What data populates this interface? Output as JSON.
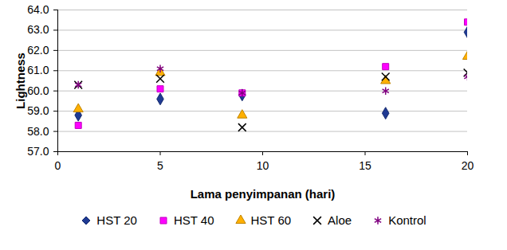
{
  "chart_data": {
    "type": "scatter",
    "x_label": "Lama penyimpanan (hari)",
    "y_label": "Lightness",
    "x": [
      1,
      5,
      9,
      16,
      20
    ],
    "series": [
      {
        "name": "HST 20",
        "color": "#1F3A93",
        "marker": "diamond",
        "values": [
          58.8,
          59.6,
          59.8,
          58.9,
          62.9
        ]
      },
      {
        "name": "HST 40",
        "color": "#FF00FF",
        "marker": "square",
        "values": [
          58.3,
          60.1,
          59.9,
          61.2,
          63.4
        ]
      },
      {
        "name": "HST 60",
        "color": "#FFB000",
        "marker": "triangle",
        "values": [
          59.1,
          60.9,
          58.8,
          60.5,
          61.7
        ]
      },
      {
        "name": "Aloe",
        "color": "#000000",
        "marker": "times",
        "values": [
          60.3,
          60.6,
          58.2,
          60.7,
          60.9
        ]
      },
      {
        "name": "Kontrol",
        "color": "#800080",
        "marker": "asterisk",
        "values": [
          60.3,
          61.1,
          59.9,
          60.0,
          60.7
        ]
      }
    ],
    "xlim": [
      0,
      20
    ],
    "xticks": [
      0,
      5,
      10,
      15,
      20
    ],
    "ylim": [
      57,
      64
    ],
    "yticks": [
      57,
      58,
      59,
      60,
      61,
      62,
      63,
      64
    ],
    "grid": true,
    "legend": "bottom"
  }
}
